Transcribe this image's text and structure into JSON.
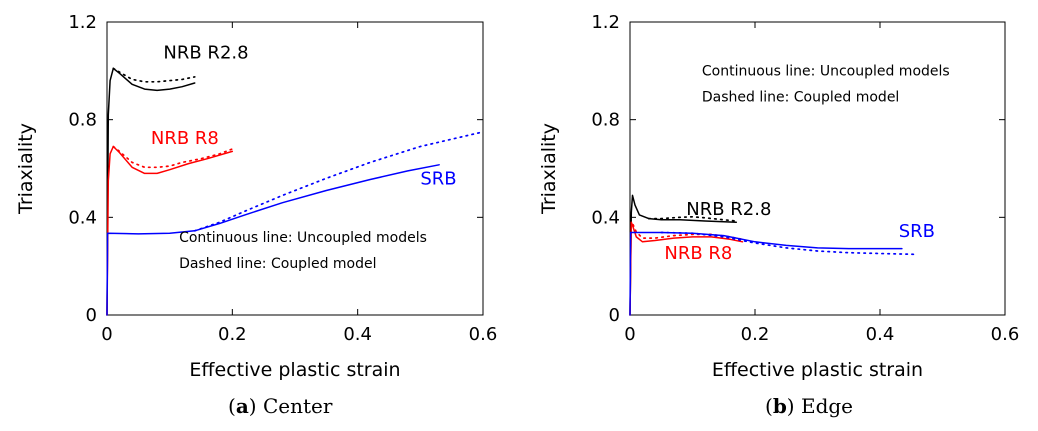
{
  "captions": [
    {
      "label": "a",
      "text": "Center"
    },
    {
      "label": "b",
      "text": "Edge"
    }
  ],
  "chart_data": [
    {
      "type": "line",
      "title": "",
      "xlabel": "Effective plastic strain",
      "ylabel": "Triaxiality",
      "xlim": [
        0,
        0.6
      ],
      "ylim": [
        0,
        1.2
      ],
      "xticks": [
        {
          "v": 0,
          "label": "0"
        },
        {
          "v": 0.2,
          "label": "0.2"
        },
        {
          "v": 0.4,
          "label": "0.4"
        },
        {
          "v": 0.6,
          "label": "0.6"
        }
      ],
      "yticks": [
        {
          "v": 0,
          "label": "0"
        },
        {
          "v": 0.4,
          "label": "0.4"
        },
        {
          "v": 0.8,
          "label": "0.8"
        },
        {
          "v": 1.2,
          "label": "1.2"
        }
      ],
      "grid": false,
      "note_lines": [
        "Continuous line: Uncoupled models",
        "Dashed line: Coupled model"
      ],
      "note_pos": [
        0.115,
        0.3
      ],
      "series": [
        {
          "name": "NRB R2.8",
          "color": "#000000",
          "style": "solid",
          "x": [
            0,
            0.002,
            0.005,
            0.01,
            0.02,
            0.04,
            0.06,
            0.08,
            0.1,
            0.12,
            0.14
          ],
          "y": [
            0.0,
            0.82,
            0.96,
            1.01,
            0.99,
            0.945,
            0.925,
            0.92,
            0.925,
            0.935,
            0.95
          ],
          "label_pos": [
            0.09,
            1.05
          ]
        },
        {
          "name": "",
          "color": "#000000",
          "style": "dotted",
          "x": [
            0.01,
            0.02,
            0.04,
            0.06,
            0.08,
            0.1,
            0.12,
            0.14
          ],
          "y": [
            1.01,
            0.995,
            0.965,
            0.955,
            0.955,
            0.96,
            0.965,
            0.975
          ]
        },
        {
          "name": "NRB R8",
          "color": "#ff0000",
          "style": "solid",
          "x": [
            0,
            0.002,
            0.005,
            0.01,
            0.02,
            0.04,
            0.06,
            0.08,
            0.1,
            0.13,
            0.16,
            0.2
          ],
          "y": [
            0.0,
            0.55,
            0.66,
            0.69,
            0.665,
            0.605,
            0.58,
            0.58,
            0.595,
            0.62,
            0.64,
            0.67
          ],
          "label_pos": [
            0.07,
            0.7
          ]
        },
        {
          "name": "",
          "color": "#ff0000",
          "style": "dotted",
          "x": [
            0.01,
            0.02,
            0.04,
            0.06,
            0.08,
            0.1,
            0.12,
            0.15,
            0.18,
            0.2
          ],
          "y": [
            0.69,
            0.67,
            0.625,
            0.605,
            0.605,
            0.61,
            0.625,
            0.64,
            0.66,
            0.68
          ],
          "label_pos": []
        },
        {
          "name": "SRB",
          "color": "#0000ff",
          "style": "solid",
          "x": [
            0,
            0.001,
            0.05,
            0.1,
            0.14,
            0.18,
            0.22,
            0.28,
            0.35,
            0.42,
            0.48,
            0.53
          ],
          "y": [
            0.0,
            0.335,
            0.332,
            0.335,
            0.345,
            0.375,
            0.41,
            0.46,
            0.51,
            0.555,
            0.59,
            0.615
          ],
          "label_pos": [
            0.5,
            0.535
          ]
        },
        {
          "name": "",
          "color": "#0000ff",
          "style": "dotted",
          "x": [
            0.14,
            0.18,
            0.22,
            0.28,
            0.35,
            0.42,
            0.5,
            0.6
          ],
          "y": [
            0.345,
            0.38,
            0.425,
            0.49,
            0.56,
            0.625,
            0.69,
            0.75
          ]
        }
      ]
    },
    {
      "type": "line",
      "title": "",
      "xlabel": "Effective plastic strain",
      "ylabel": "Triaxiality",
      "xlim": [
        0,
        0.6
      ],
      "ylim": [
        0,
        1.2
      ],
      "xticks": [
        {
          "v": 0,
          "label": "0"
        },
        {
          "v": 0.2,
          "label": "0.2"
        },
        {
          "v": 0.4,
          "label": "0.4"
        },
        {
          "v": 0.6,
          "label": "0.6"
        }
      ],
      "yticks": [
        {
          "v": 0,
          "label": "0"
        },
        {
          "v": 0.4,
          "label": "0.4"
        },
        {
          "v": 0.8,
          "label": "0.8"
        },
        {
          "v": 1.2,
          "label": "1.2"
        }
      ],
      "grid": false,
      "note_lines": [
        "Continuous line: Uncoupled models",
        "Dashed line: Coupled model"
      ],
      "note_pos": [
        0.115,
        0.98
      ],
      "series": [
        {
          "name": "NRB R2.8",
          "color": "#000000",
          "style": "solid",
          "x": [
            0,
            0.002,
            0.004,
            0.008,
            0.015,
            0.03,
            0.05,
            0.08,
            0.12,
            0.17
          ],
          "y": [
            0.0,
            0.42,
            0.49,
            0.45,
            0.41,
            0.395,
            0.39,
            0.39,
            0.385,
            0.38
          ],
          "label_pos": [
            0.09,
            0.41
          ]
        },
        {
          "name": "",
          "color": "#000000",
          "style": "dotted",
          "x": [
            0.03,
            0.05,
            0.08,
            0.1,
            0.12,
            0.15,
            0.17
          ],
          "y": [
            0.395,
            0.395,
            0.4,
            0.402,
            0.398,
            0.39,
            0.385
          ]
        },
        {
          "name": "NRB R8",
          "color": "#ff0000",
          "style": "solid",
          "x": [
            0,
            0.002,
            0.005,
            0.01,
            0.02,
            0.04,
            0.07,
            0.1,
            0.13,
            0.16,
            0.18
          ],
          "y": [
            0.0,
            0.38,
            0.36,
            0.32,
            0.3,
            0.305,
            0.315,
            0.32,
            0.32,
            0.31,
            0.3
          ],
          "label_pos": [
            0.055,
            0.23
          ]
        },
        {
          "name": "",
          "color": "#ff0000",
          "style": "dotted",
          "x": [
            0.005,
            0.01,
            0.02,
            0.04,
            0.07,
            0.1,
            0.13,
            0.16,
            0.18
          ],
          "y": [
            0.37,
            0.34,
            0.315,
            0.315,
            0.325,
            0.33,
            0.33,
            0.32,
            0.31
          ]
        },
        {
          "name": "SRB",
          "color": "#0000ff",
          "style": "solid",
          "x": [
            0,
            0.001,
            0.05,
            0.1,
            0.15,
            0.2,
            0.25,
            0.3,
            0.35,
            0.4,
            0.435
          ],
          "y": [
            0.0,
            0.338,
            0.338,
            0.335,
            0.325,
            0.3,
            0.285,
            0.275,
            0.272,
            0.272,
            0.272
          ],
          "label_pos": [
            0.43,
            0.32
          ]
        },
        {
          "name": "",
          "color": "#0000ff",
          "style": "dotted",
          "x": [
            0.05,
            0.1,
            0.15,
            0.2,
            0.25,
            0.3,
            0.35,
            0.4,
            0.46
          ],
          "y": [
            0.338,
            0.335,
            0.32,
            0.295,
            0.275,
            0.262,
            0.255,
            0.252,
            0.248
          ]
        }
      ]
    }
  ]
}
